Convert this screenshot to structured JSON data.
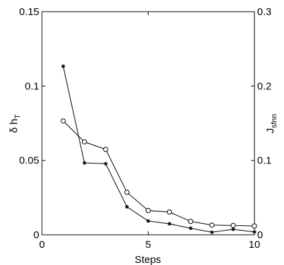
{
  "chart_data": {
    "type": "line",
    "xlabel": "Steps",
    "ylabel_left": {
      "base": "δ h",
      "sub": "T"
    },
    "ylabel_right": {
      "base": "J",
      "sub": "sfnn"
    },
    "xlim": [
      0,
      10
    ],
    "ylim_left": [
      0,
      0.15
    ],
    "ylim_right": [
      0,
      0.3
    ],
    "xticks": [
      0,
      5,
      10
    ],
    "yticks_left": [
      "0",
      "0.05",
      "0.1",
      "0.15"
    ],
    "yticks_left_values": [
      0,
      0.05,
      0.1,
      0.15
    ],
    "yticks_right": [
      "0",
      "0.1",
      "0.2",
      "0.3"
    ],
    "yticks_right_values": [
      0,
      0.1,
      0.2,
      0.3
    ],
    "grid": false,
    "series": [
      {
        "marker": "star",
        "axis": "left",
        "x": [
          1,
          2,
          3,
          4,
          5,
          6,
          7,
          8,
          9,
          10
        ],
        "values": [
          0.1133,
          0.0483,
          0.0478,
          0.0188,
          0.0093,
          0.0074,
          0.0044,
          0.0017,
          0.0037,
          0.0019
        ]
      },
      {
        "marker": "circle",
        "axis": "right",
        "x": [
          1,
          2,
          3,
          4,
          5,
          6,
          7,
          8,
          9,
          10
        ],
        "values": [
          0.1531,
          0.1249,
          0.1148,
          0.0571,
          0.0327,
          0.0306,
          0.018,
          0.013,
          0.0126,
          0.0119
        ]
      }
    ]
  }
}
